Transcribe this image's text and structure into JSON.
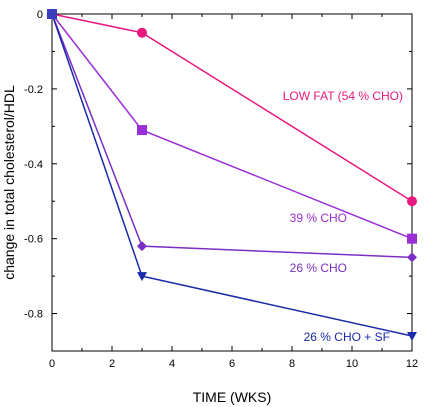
{
  "chart_data": {
    "type": "line",
    "xlabel": "TIME (WKS)",
    "ylabel": "change in total cholesterol/HDL",
    "xlim": [
      0,
      12
    ],
    "ylim": [
      -0.9,
      0
    ],
    "xticks": [
      0,
      2,
      4,
      6,
      8,
      10,
      12
    ],
    "yticks": [
      0,
      -0.2,
      -0.4,
      -0.6,
      -0.8
    ],
    "xtick_labels": [
      "0",
      "2",
      "4",
      "6",
      "8",
      "10",
      "12"
    ],
    "ytick_labels": [
      "0",
      "-0.2",
      "-0.4",
      "-0.6",
      "-0.8"
    ],
    "grid": false,
    "series": [
      {
        "name": "LOW FAT (54 % CHO)",
        "color": "#e8197f",
        "marker": "circle",
        "x": [
          0,
          3,
          12
        ],
        "y": [
          0,
          -0.05,
          -0.5
        ]
      },
      {
        "name": "39 % CHO",
        "color": "#9b2fd6",
        "marker": "square",
        "x": [
          0,
          3,
          12
        ],
        "y": [
          0,
          -0.31,
          -0.6
        ]
      },
      {
        "name": "26 % CHO",
        "color": "#7a2fc4",
        "marker": "diamond",
        "x": [
          0,
          3,
          12
        ],
        "y": [
          0,
          -0.62,
          -0.65
        ]
      },
      {
        "name": "26 % CHO + SF",
        "color": "#1a2aa8",
        "marker": "triangle-down",
        "x": [
          0,
          3,
          12
        ],
        "y": [
          0,
          -0.7,
          -0.86
        ]
      }
    ],
    "origin_marker_color": "#3b3fbf"
  }
}
